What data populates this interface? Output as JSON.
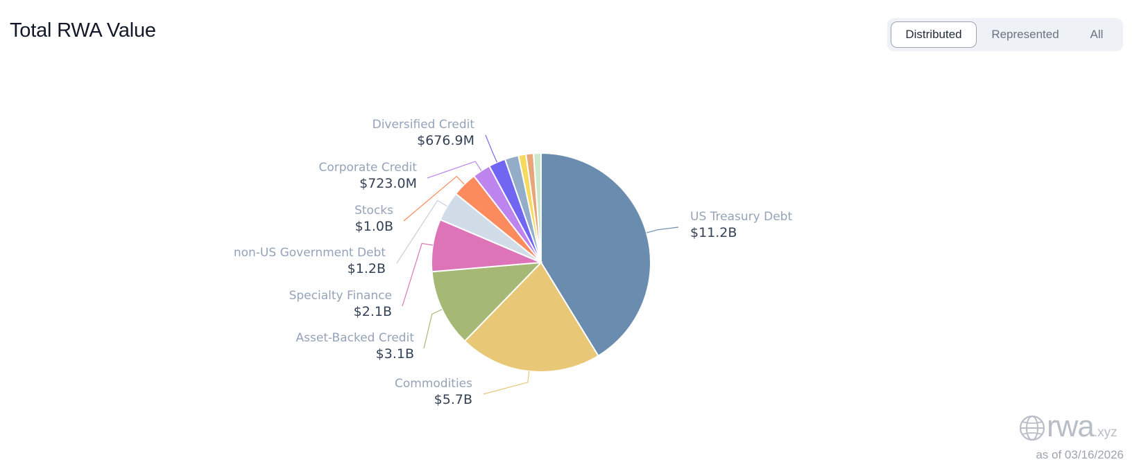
{
  "header": {
    "title": "Total RWA Value"
  },
  "toggle": {
    "options": [
      "Distributed",
      "Represented",
      "All"
    ],
    "selected": "Distributed"
  },
  "chart_data": {
    "type": "pie",
    "title": "Total RWA Value",
    "slices": [
      {
        "label": "US Treasury Debt",
        "value": 11.2,
        "display": "$11.2B",
        "color": "#6a8caf"
      },
      {
        "label": "Commodities",
        "value": 5.7,
        "display": "$5.7B",
        "color": "#e8c776"
      },
      {
        "label": "Asset-Backed Credit",
        "value": 3.1,
        "display": "$3.1B",
        "color": "#a6b876"
      },
      {
        "label": "Specialty Finance",
        "value": 2.1,
        "display": "$2.1B",
        "color": "#dd74b8"
      },
      {
        "label": "non-US Government Debt",
        "value": 1.2,
        "display": "$1.2B",
        "color": "#d2dce9"
      },
      {
        "label": "Stocks",
        "value": 1.0,
        "display": "$1.0B",
        "color": "#fb8a5c"
      },
      {
        "label": "Corporate Credit",
        "value": 0.723,
        "display": "$723.0M",
        "color": "#bc84ec"
      },
      {
        "label": "Diversified Credit",
        "value": 0.6769,
        "display": "$676.9M",
        "color": "#7166f2"
      },
      {
        "label": "",
        "value": 0.55,
        "display": "",
        "color": "#93adc9"
      },
      {
        "label": "",
        "value": 0.3,
        "display": "",
        "color": "#f5da5e"
      },
      {
        "label": "",
        "value": 0.3,
        "display": "",
        "color": "#e8a57a"
      },
      {
        "label": "",
        "value": 0.3,
        "display": "",
        "color": "#cde9cd"
      }
    ],
    "unit": "USD",
    "legend": "none"
  },
  "watermark": {
    "brand": "rwa",
    "suffix": ".xyz",
    "icon": "globe-icon"
  },
  "footer": {
    "as_of": "as of 03/16/2026"
  }
}
